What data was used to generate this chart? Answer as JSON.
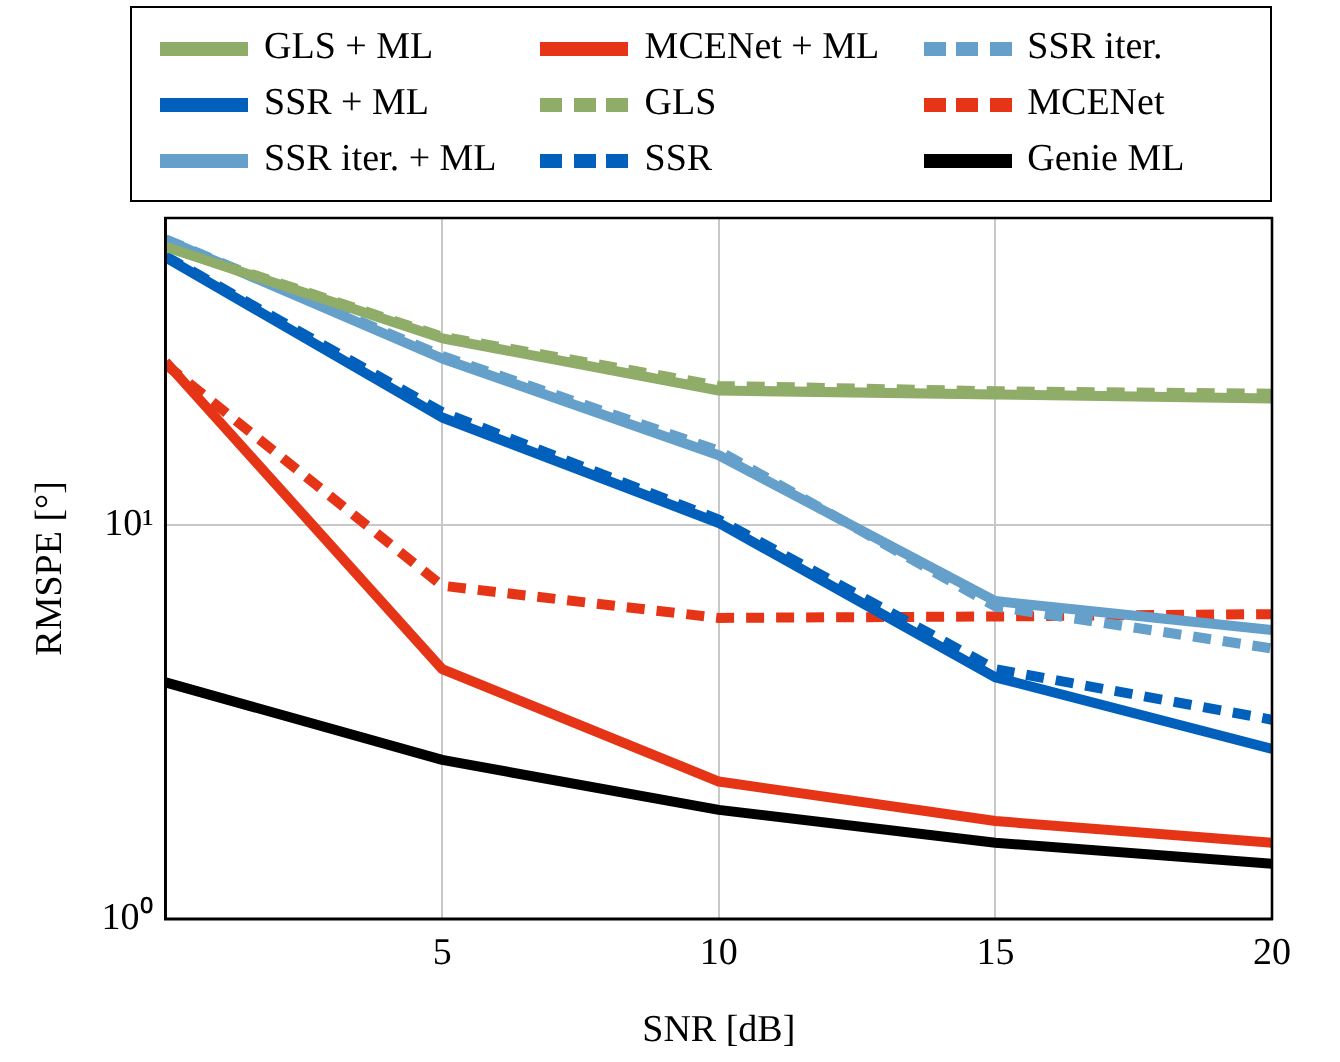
{
  "chart_data": {
    "type": "line",
    "xlabel": "SNR [dB]",
    "ylabel": "RMSPE [°]",
    "x": [
      0,
      5,
      10,
      15,
      20
    ],
    "xlim": [
      0,
      20
    ],
    "xticks": [
      5,
      10,
      15,
      20
    ],
    "ylim": [
      1,
      60
    ],
    "yticks": [
      {
        "value": 1,
        "label": "10⁰"
      },
      {
        "value": 10,
        "label": "10¹"
      }
    ],
    "log": "y",
    "grid": true,
    "legend": "top",
    "marker": "none",
    "series": [
      {
        "name": "GLS + ML",
        "color": "#8fac68",
        "line_style": "solid",
        "values": [
          50.7,
          29.7,
          21.9,
          21.4,
          20.9
        ]
      },
      {
        "name": "SSR + ML",
        "color": "#0060bb",
        "line_style": "solid",
        "values": [
          47.7,
          18.7,
          10.1,
          4.1,
          2.7
        ]
      },
      {
        "name": "SSR iter. + ML",
        "color": "#65a0cb",
        "line_style": "solid",
        "values": [
          52.9,
          26.4,
          15.0,
          6.4,
          5.4
        ]
      },
      {
        "name": "MCENet + ML",
        "color": "#e53516",
        "line_style": "solid",
        "values": [
          25.9,
          4.3,
          2.23,
          1.77,
          1.56
        ]
      },
      {
        "name": "GLS",
        "color": "#8fac68",
        "line_style": "dashed",
        "values": [
          51,
          30,
          22.5,
          21.8,
          21.5
        ]
      },
      {
        "name": "SSR",
        "color": "#0060bb",
        "line_style": "dashed",
        "values": [
          48,
          19.3,
          10.3,
          4.3,
          3.2
        ]
      },
      {
        "name": "SSR iter.",
        "color": "#65a0cb",
        "line_style": "dashed",
        "values": [
          53,
          26.8,
          15.4,
          6.2,
          4.85
        ]
      },
      {
        "name": "MCENet",
        "color": "#e53516",
        "line_style": "dashed",
        "values": [
          25.5,
          7.0,
          5.8,
          5.85,
          5.93
        ]
      },
      {
        "name": "Genie ML",
        "color": "#000000",
        "line_style": "solid",
        "values": [
          3.98,
          2.53,
          1.89,
          1.56,
          1.38
        ]
      }
    ]
  }
}
